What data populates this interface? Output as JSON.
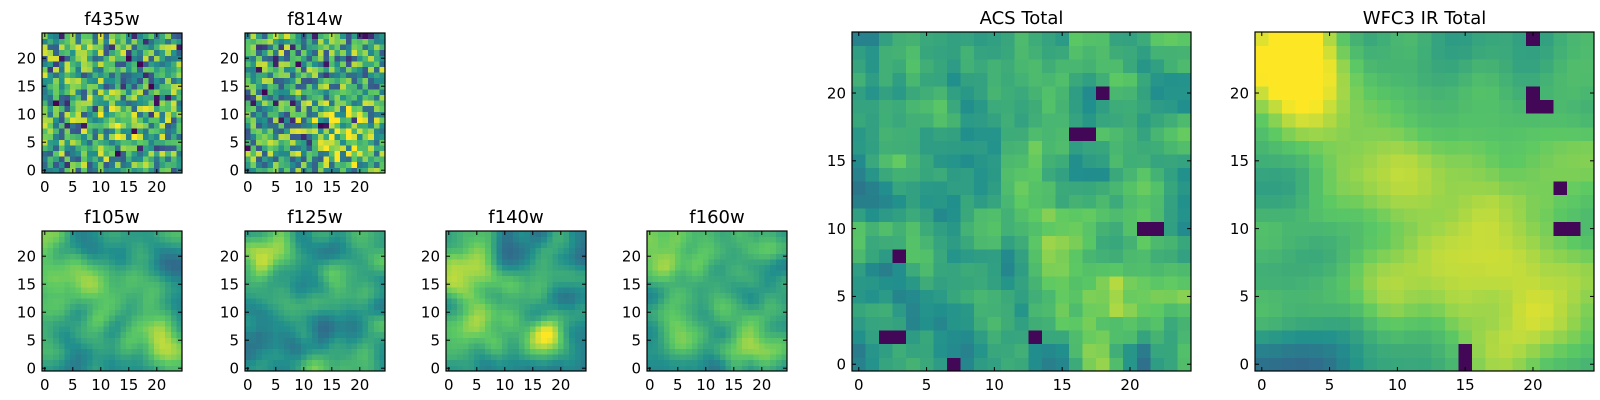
{
  "colormap": [
    "#440154",
    "#3b528b",
    "#21908d",
    "#5dc963",
    "#fde725"
  ],
  "chart_data": [
    {
      "type": "heatmap",
      "title": "f435w",
      "xticks": [
        "0",
        "5",
        "10",
        "15",
        "20"
      ],
      "yticks": [
        "0",
        "5",
        "10",
        "15",
        "20"
      ],
      "xlim": [
        -0.5,
        24.5
      ],
      "ylim": [
        -0.5,
        24.5
      ],
      "grid_size": 25,
      "value_range": [
        0,
        1
      ],
      "texture": "pixel-noise",
      "hotspots": [
        [
          14,
          8,
          3.0,
          0.15
        ]
      ],
      "seed": 11
    },
    {
      "type": "heatmap",
      "title": "f814w",
      "xticks": [
        "0",
        "5",
        "10",
        "15",
        "20"
      ],
      "yticks": [
        "0",
        "5",
        "10",
        "15",
        "20"
      ],
      "xlim": [
        -0.5,
        24.5
      ],
      "ylim": [
        -0.5,
        24.5
      ],
      "grid_size": 25,
      "value_range": [
        0,
        1
      ],
      "texture": "pixel-noise",
      "hotspots": [
        [
          18,
          6,
          3.5,
          0.2
        ],
        [
          14,
          10,
          2.5,
          0.1
        ]
      ],
      "seed": 23
    },
    {
      "type": "heatmap",
      "title": "f105w",
      "xticks": [
        "0",
        "5",
        "10",
        "15",
        "20"
      ],
      "yticks": [
        "0",
        "5",
        "10",
        "15",
        "20"
      ],
      "xlim": [
        -0.5,
        24.5
      ],
      "ylim": [
        -0.5,
        24.5
      ],
      "grid_size": 25,
      "value_range": [
        0,
        1
      ],
      "texture": "smooth",
      "hotspots": [
        [
          20,
          5,
          3.0,
          0.3
        ],
        [
          5,
          18,
          3.0,
          0.2
        ],
        [
          12,
          12,
          4.0,
          0.15
        ]
      ],
      "seed": 37
    },
    {
      "type": "heatmap",
      "title": "f125w",
      "xticks": [
        "0",
        "5",
        "10",
        "15",
        "20"
      ],
      "yticks": [
        "0",
        "5",
        "10",
        "15",
        "20"
      ],
      "xlim": [
        -0.5,
        24.5
      ],
      "ylim": [
        -0.5,
        24.5
      ],
      "grid_size": 25,
      "value_range": [
        0,
        1
      ],
      "texture": "smooth",
      "hotspots": [
        [
          2,
          20,
          3.5,
          0.3
        ],
        [
          15,
          14,
          3.0,
          0.15
        ]
      ],
      "seed": 41
    },
    {
      "type": "heatmap",
      "title": "f140w",
      "xticks": [
        "0",
        "5",
        "10",
        "15",
        "20"
      ],
      "yticks": [
        "0",
        "5",
        "10",
        "15",
        "20"
      ],
      "xlim": [
        -0.5,
        24.5
      ],
      "ylim": [
        -0.5,
        24.5
      ],
      "grid_size": 25,
      "value_range": [
        0,
        1
      ],
      "texture": "smooth",
      "hotspots": [
        [
          2,
          18,
          3.0,
          0.3
        ],
        [
          18,
          5,
          3.0,
          0.25
        ],
        [
          8,
          8,
          3.0,
          0.15
        ]
      ],
      "seed": 53
    },
    {
      "type": "heatmap",
      "title": "f160w",
      "xticks": [
        "0",
        "5",
        "10",
        "15",
        "20"
      ],
      "yticks": [
        "0",
        "5",
        "10",
        "15",
        "20"
      ],
      "xlim": [
        -0.5,
        24.5
      ],
      "ylim": [
        -0.5,
        24.5
      ],
      "grid_size": 25,
      "value_range": [
        0,
        1
      ],
      "texture": "smooth",
      "hotspots": [
        [
          3,
          18,
          4.0,
          0.3
        ],
        [
          20,
          3,
          3.0,
          0.25
        ]
      ],
      "seed": 67
    },
    {
      "type": "heatmap",
      "title": "ACS Total",
      "xticks": [
        "0",
        "5",
        "10",
        "15",
        "20"
      ],
      "yticks": [
        "0",
        "5",
        "10",
        "15",
        "20"
      ],
      "xlim": [
        -0.5,
        24.5
      ],
      "ylim": [
        -0.5,
        24.5
      ],
      "grid_size": 25,
      "value_range": [
        0,
        1
      ],
      "texture": "blocky",
      "hotspots": [
        [
          18,
          5,
          2.5,
          0.3
        ],
        [
          14,
          12,
          3.0,
          0.15
        ]
      ],
      "dark_cells": [
        [
          17,
          17
        ],
        [
          16,
          17
        ],
        [
          21,
          10
        ],
        [
          22,
          10
        ],
        [
          3,
          8
        ],
        [
          2,
          2
        ],
        [
          3,
          2
        ],
        [
          7,
          0
        ],
        [
          13,
          2
        ],
        [
          18,
          20
        ]
      ],
      "seed": 79
    },
    {
      "type": "heatmap",
      "title": "WFC3 IR Total",
      "xticks": [
        "0",
        "5",
        "10",
        "15",
        "20"
      ],
      "yticks": [
        "0",
        "5",
        "10",
        "15",
        "20"
      ],
      "xlim": [
        -0.5,
        24.5
      ],
      "ylim": [
        -0.5,
        24.5
      ],
      "grid_size": 25,
      "value_range": [
        0,
        1
      ],
      "texture": "smooth",
      "hotspots": [
        [
          1,
          23,
          3.5,
          0.4
        ],
        [
          19,
          4,
          4.0,
          0.35
        ],
        [
          12,
          13,
          5.0,
          0.2
        ],
        [
          4,
          20,
          3.0,
          0.2
        ]
      ],
      "dark_cells": [
        [
          20,
          19
        ],
        [
          21,
          19
        ],
        [
          20,
          20
        ],
        [
          22,
          10
        ],
        [
          23,
          10
        ],
        [
          22,
          13
        ],
        [
          15,
          0
        ],
        [
          15,
          1
        ],
        [
          20,
          24
        ]
      ],
      "seed": 97
    }
  ]
}
